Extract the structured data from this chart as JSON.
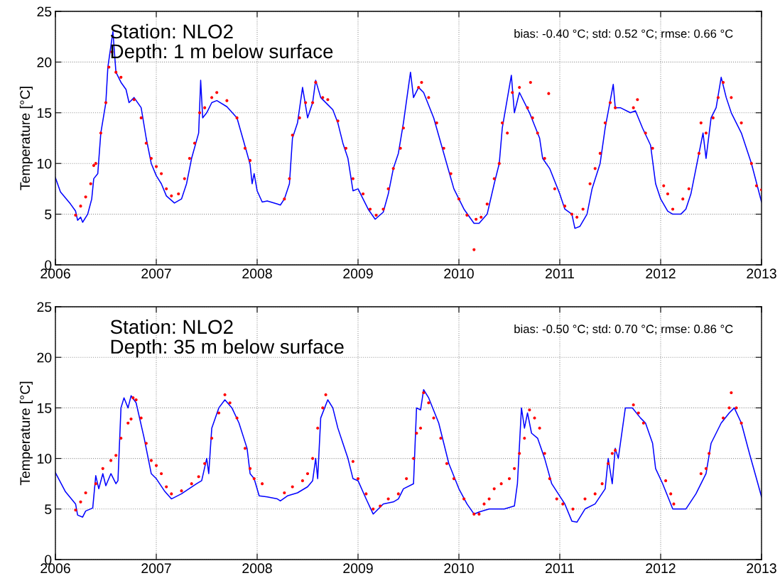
{
  "chart_data": [
    {
      "type": "line",
      "ylabel": "Temperature [°C]",
      "xlim": [
        2006,
        2013
      ],
      "ylim": [
        0,
        25
      ],
      "xticks": [
        2006,
        2007,
        2008,
        2009,
        2010,
        2011,
        2012,
        2013
      ],
      "yticks": [
        0,
        5,
        10,
        15,
        20,
        25
      ],
      "grid": true,
      "annotations": [
        "Station: NLO2\nDepth: 1 m below surface",
        "bias: -0.40 °C; std: 0.52 °C; rmse: 0.66 °C"
      ],
      "series": [
        {
          "color": "#0000ff",
          "x": [
            2006.0,
            2006.05,
            2006.1,
            2006.15,
            2006.2,
            2006.22,
            2006.25,
            2006.27,
            2006.32,
            2006.36,
            2006.38,
            2006.42,
            2006.45,
            2006.5,
            2006.52,
            2006.57,
            2006.6,
            2006.65,
            2006.7,
            2006.73,
            2006.78,
            2006.85,
            2006.9,
            2006.95,
            2007.0,
            2007.05,
            2007.1,
            2007.18,
            2007.25,
            2007.3,
            2007.35,
            2007.42,
            2007.44,
            2007.46,
            2007.5,
            2007.55,
            2007.6,
            2007.7,
            2007.8,
            2007.9,
            2007.93,
            2007.95,
            2007.97,
            2008.0,
            2008.05,
            2008.1,
            2008.2,
            2008.23,
            2008.27,
            2008.32,
            2008.35,
            2008.4,
            2008.45,
            2008.5,
            2008.55,
            2008.58,
            2008.63,
            2008.7,
            2008.75,
            2008.8,
            2008.85,
            2008.9,
            2008.95,
            2009.0,
            2009.1,
            2009.17,
            2009.25,
            2009.3,
            2009.35,
            2009.4,
            2009.45,
            2009.52,
            2009.55,
            2009.6,
            2009.65,
            2009.75,
            2009.85,
            2009.95,
            2010.05,
            2010.15,
            2010.2,
            2010.28,
            2010.35,
            2010.4,
            2010.43,
            2010.52,
            2010.55,
            2010.6,
            2010.7,
            2010.8,
            2010.83,
            2010.9,
            2011.0,
            2011.05,
            2011.12,
            2011.15,
            2011.2,
            2011.27,
            2011.32,
            2011.4,
            2011.45,
            2011.53,
            2011.55,
            2011.6,
            2011.7,
            2011.75,
            2011.82,
            2011.9,
            2011.95,
            2012.0,
            2012.07,
            2012.12,
            2012.2,
            2012.25,
            2012.3,
            2012.35,
            2012.42,
            2012.45,
            2012.5,
            2012.55,
            2012.6,
            2012.65,
            2012.7,
            2012.8,
            2012.9,
            2013.0
          ],
          "values": [
            8.6,
            7.2,
            6.6,
            6.0,
            5.3,
            4.4,
            4.7,
            4.2,
            5.0,
            6.5,
            8.5,
            9.0,
            13.0,
            16.0,
            19.5,
            23.0,
            19.0,
            18.0,
            17.3,
            16.0,
            16.5,
            15.5,
            12.5,
            10.0,
            8.8,
            8.0,
            6.8,
            6.1,
            6.5,
            8.0,
            10.5,
            13.0,
            18.2,
            14.5,
            15.0,
            16.0,
            16.2,
            15.6,
            14.5,
            11.0,
            9.9,
            8.0,
            9.0,
            7.3,
            6.2,
            6.3,
            6.0,
            5.9,
            6.5,
            8.0,
            12.5,
            14.0,
            17.5,
            14.5,
            16.0,
            18.2,
            16.5,
            15.8,
            15.3,
            14.0,
            12.0,
            10.5,
            7.3,
            7.5,
            5.5,
            4.5,
            5.2,
            7.0,
            9.5,
            11.0,
            14.0,
            19.0,
            16.5,
            17.5,
            17.0,
            14.5,
            11.0,
            7.5,
            5.5,
            4.1,
            4.1,
            5.0,
            8.0,
            10.0,
            13.5,
            18.7,
            15.0,
            17.0,
            15.0,
            12.5,
            10.5,
            9.5,
            7.0,
            5.5,
            5.0,
            3.6,
            3.8,
            5.0,
            7.5,
            10.0,
            13.5,
            17.8,
            15.5,
            15.5,
            15.0,
            15.2,
            13.5,
            11.8,
            8.0,
            6.5,
            5.3,
            5.0,
            5.0,
            5.5,
            7.0,
            9.5,
            13.0,
            10.5,
            14.5,
            15.5,
            18.5,
            16.5,
            15.0,
            13.0,
            10.0,
            6.2
          ]
        },
        {
          "type": "scatter",
          "color": "#ff0000",
          "marker": "circle",
          "x": [
            2006.2,
            2006.25,
            2006.3,
            2006.35,
            2006.38,
            2006.4,
            2006.45,
            2006.5,
            2006.53,
            2006.56,
            2006.6,
            2006.65,
            2006.78,
            2006.85,
            2006.9,
            2006.95,
            2007.0,
            2007.05,
            2007.1,
            2007.15,
            2007.22,
            2007.28,
            2007.33,
            2007.38,
            2007.43,
            2007.48,
            2007.55,
            2007.6,
            2007.7,
            2007.8,
            2007.88,
            2007.93,
            2008.27,
            2008.32,
            2008.35,
            2008.42,
            2008.48,
            2008.55,
            2008.58,
            2008.65,
            2008.7,
            2008.8,
            2008.88,
            2008.95,
            2009.05,
            2009.12,
            2009.18,
            2009.25,
            2009.3,
            2009.35,
            2009.42,
            2009.45,
            2009.6,
            2009.63,
            2009.7,
            2009.78,
            2009.85,
            2009.92,
            2010.0,
            2010.08,
            2010.15,
            2010.17,
            2010.22,
            2010.28,
            2010.35,
            2010.4,
            2010.43,
            2010.48,
            2010.53,
            2010.6,
            2010.68,
            2010.71,
            2010.73,
            2010.78,
            2010.85,
            2010.89,
            2010.95,
            2011.05,
            2011.12,
            2011.17,
            2011.23,
            2011.3,
            2011.35,
            2011.4,
            2011.45,
            2011.5,
            2011.55,
            2011.73,
            2011.77,
            2011.85,
            2011.92,
            2012.03,
            2012.07,
            2012.12,
            2012.22,
            2012.28,
            2012.38,
            2012.4,
            2012.45,
            2012.52,
            2012.57,
            2012.62,
            2012.7,
            2012.8,
            2012.9,
            2012.95,
            2013.0
          ],
          "values": [
            4.9,
            5.8,
            6.7,
            8.0,
            9.8,
            10.0,
            13.0,
            16.0,
            19.5,
            21.0,
            19.0,
            18.5,
            16.3,
            14.5,
            12.0,
            10.5,
            9.7,
            9.0,
            7.5,
            6.8,
            7.0,
            8.5,
            10.5,
            12.0,
            15.0,
            15.5,
            16.5,
            17.0,
            16.2,
            14.5,
            11.5,
            10.3,
            6.5,
            8.5,
            12.8,
            14.5,
            16.0,
            16.0,
            18.0,
            16.5,
            16.3,
            14.2,
            11.5,
            8.5,
            7.0,
            5.5,
            4.9,
            5.5,
            7.5,
            9.5,
            11.5,
            13.5,
            17.5,
            18.0,
            16.5,
            14.0,
            11.5,
            9.0,
            6.5,
            4.9,
            1.5,
            4.5,
            4.7,
            6.0,
            8.5,
            10.0,
            14.0,
            13.0,
            17.0,
            17.5,
            15.5,
            18.0,
            14.5,
            13.0,
            10.5,
            16.9,
            7.5,
            5.8,
            5.0,
            4.7,
            5.5,
            8.0,
            9.5,
            11.0,
            14.0,
            16.0,
            15.5,
            15.5,
            16.3,
            13.0,
            11.5,
            7.8,
            7.0,
            5.5,
            6.5,
            7.5,
            11.0,
            14.0,
            13.0,
            14.5,
            16.5,
            18.0,
            16.5,
            14.0,
            10.0,
            7.8,
            7.4
          ]
        }
      ]
    },
    {
      "type": "line",
      "ylabel": "Temperature [°C]",
      "xlim": [
        2006,
        2013
      ],
      "ylim": [
        0,
        25
      ],
      "xticks": [
        2006,
        2007,
        2008,
        2009,
        2010,
        2011,
        2012,
        2013
      ],
      "yticks": [
        0,
        5,
        10,
        15,
        20,
        25
      ],
      "grid": true,
      "annotations": [
        "Station: NLO2\nDepth: 35 m below surface",
        "bias: -0.50 °C; std: 0.70 °C; rmse: 0.86 °C"
      ],
      "series": [
        {
          "color": "#0000ff",
          "x": [
            2006.0,
            2006.1,
            2006.2,
            2006.22,
            2006.27,
            2006.3,
            2006.37,
            2006.4,
            2006.43,
            2006.47,
            2006.5,
            2006.55,
            2006.6,
            2006.62,
            2006.65,
            2006.68,
            2006.72,
            2006.75,
            2006.8,
            2006.88,
            2006.92,
            2006.95,
            2007.0,
            2007.08,
            2007.15,
            2007.25,
            2007.4,
            2007.45,
            2007.5,
            2007.52,
            2007.55,
            2007.62,
            2007.68,
            2007.75,
            2007.82,
            2007.9,
            2007.93,
            2007.97,
            2008.02,
            2008.1,
            2008.2,
            2008.23,
            2008.3,
            2008.4,
            2008.5,
            2008.55,
            2008.58,
            2008.6,
            2008.63,
            2008.7,
            2008.75,
            2008.8,
            2008.85,
            2008.9,
            2008.95,
            2009.0,
            2009.08,
            2009.15,
            2009.25,
            2009.35,
            2009.4,
            2009.45,
            2009.55,
            2009.58,
            2009.62,
            2009.65,
            2009.7,
            2009.8,
            2009.9,
            2010.0,
            2010.08,
            2010.15,
            2010.2,
            2010.3,
            2010.45,
            2010.55,
            2010.58,
            2010.62,
            2010.65,
            2010.68,
            2010.72,
            2010.78,
            2010.85,
            2010.92,
            2011.05,
            2011.12,
            2011.17,
            2011.25,
            2011.35,
            2011.45,
            2011.48,
            2011.52,
            2011.55,
            2011.58,
            2011.65,
            2011.72,
            2011.8,
            2011.85,
            2011.92,
            2011.95,
            2012.02,
            2012.08,
            2012.12,
            2012.25,
            2012.35,
            2012.4,
            2012.45,
            2012.5,
            2012.55,
            2012.6,
            2012.68,
            2012.73,
            2012.8,
            2012.88,
            2012.95,
            2013.0
          ],
          "values": [
            8.6,
            6.7,
            5.5,
            4.4,
            4.2,
            4.8,
            5.1,
            8.3,
            7.0,
            8.5,
            7.3,
            8.5,
            7.5,
            7.8,
            15.0,
            16.0,
            15.0,
            16.2,
            15.5,
            12.0,
            10.0,
            8.5,
            8.0,
            6.8,
            6.0,
            6.5,
            7.5,
            7.8,
            10.0,
            8.5,
            13.0,
            15.0,
            15.8,
            15.0,
            13.5,
            11.0,
            8.5,
            8.0,
            6.3,
            6.2,
            6.0,
            5.8,
            6.3,
            6.6,
            7.2,
            7.8,
            10.0,
            8.0,
            14.0,
            15.8,
            15.0,
            13.0,
            11.5,
            10.0,
            8.0,
            7.8,
            6.0,
            4.5,
            5.5,
            5.7,
            6.0,
            7.0,
            7.5,
            15.0,
            14.8,
            16.8,
            16.0,
            13.5,
            9.5,
            7.0,
            5.5,
            4.5,
            4.7,
            5.0,
            5.0,
            5.3,
            7.5,
            15.0,
            13.0,
            14.5,
            12.5,
            12.0,
            10.0,
            7.5,
            5.5,
            3.8,
            3.7,
            5.0,
            5.5,
            7.0,
            10.0,
            7.5,
            11.0,
            10.0,
            15.0,
            15.0,
            14.0,
            13.5,
            11.5,
            9.0,
            7.5,
            6.0,
            5.0,
            5.0,
            6.5,
            7.5,
            8.5,
            11.5,
            12.5,
            13.5,
            14.5,
            15.0,
            13.5,
            10.5,
            8.0,
            6.2
          ]
        },
        {
          "type": "scatter",
          "color": "#ff0000",
          "marker": "circle",
          "x": [
            2006.2,
            2006.25,
            2006.3,
            2006.4,
            2006.47,
            2006.55,
            2006.6,
            2006.65,
            2006.72,
            2006.75,
            2006.77,
            2006.8,
            2006.85,
            2006.9,
            2006.95,
            2007.0,
            2007.05,
            2007.1,
            2007.15,
            2007.25,
            2007.35,
            2007.42,
            2007.48,
            2007.55,
            2007.62,
            2007.68,
            2007.73,
            2007.8,
            2007.88,
            2007.93,
            2007.97,
            2008.05,
            2008.27,
            2008.35,
            2008.45,
            2008.5,
            2008.55,
            2008.6,
            2008.65,
            2008.68,
            2008.95,
            2009.0,
            2009.08,
            2009.15,
            2009.22,
            2009.3,
            2009.4,
            2009.48,
            2009.55,
            2009.58,
            2009.62,
            2009.65,
            2009.7,
            2009.75,
            2009.82,
            2009.88,
            2009.95,
            2010.05,
            2010.15,
            2010.2,
            2010.25,
            2010.3,
            2010.35,
            2010.42,
            2010.5,
            2010.55,
            2010.6,
            2010.65,
            2010.7,
            2010.75,
            2010.8,
            2010.85,
            2010.9,
            2010.97,
            2011.03,
            2011.13,
            2011.25,
            2011.35,
            2011.42,
            2011.48,
            2011.52,
            2011.55,
            2011.73,
            2011.78,
            2011.83,
            2012.05,
            2012.1,
            2012.13,
            2012.4,
            2012.45,
            2012.48,
            2012.62,
            2012.68,
            2012.7,
            2012.75,
            2012.8
          ],
          "values": [
            4.9,
            5.7,
            6.6,
            7.5,
            9.0,
            9.8,
            10.3,
            12.0,
            13.5,
            13.9,
            16.0,
            15.8,
            14.0,
            11.5,
            9.8,
            9.3,
            8.5,
            7.2,
            6.5,
            6.8,
            7.5,
            8.2,
            9.5,
            12.0,
            14.5,
            16.3,
            15.5,
            14.0,
            11.0,
            9.0,
            8.0,
            7.5,
            6.6,
            7.2,
            7.8,
            8.5,
            10.0,
            13.0,
            15.0,
            16.3,
            9.7,
            8.0,
            6.5,
            5.0,
            5.3,
            6.0,
            6.5,
            8.0,
            10.0,
            12.5,
            13.0,
            16.5,
            15.5,
            14.0,
            12.0,
            9.5,
            8.0,
            6.0,
            4.5,
            4.5,
            5.5,
            6.0,
            7.0,
            7.5,
            8.0,
            9.0,
            10.5,
            12.0,
            14.8,
            14.0,
            13.0,
            10.5,
            8.0,
            6.0,
            5.5,
            5.0,
            6.0,
            6.5,
            7.5,
            9.5,
            10.5,
            10.8,
            15.3,
            14.5,
            13.5,
            7.8,
            6.5,
            5.5,
            8.5,
            9.0,
            10.5,
            14.0,
            15.0,
            16.5,
            15.0,
            13.5
          ]
        }
      ]
    }
  ]
}
